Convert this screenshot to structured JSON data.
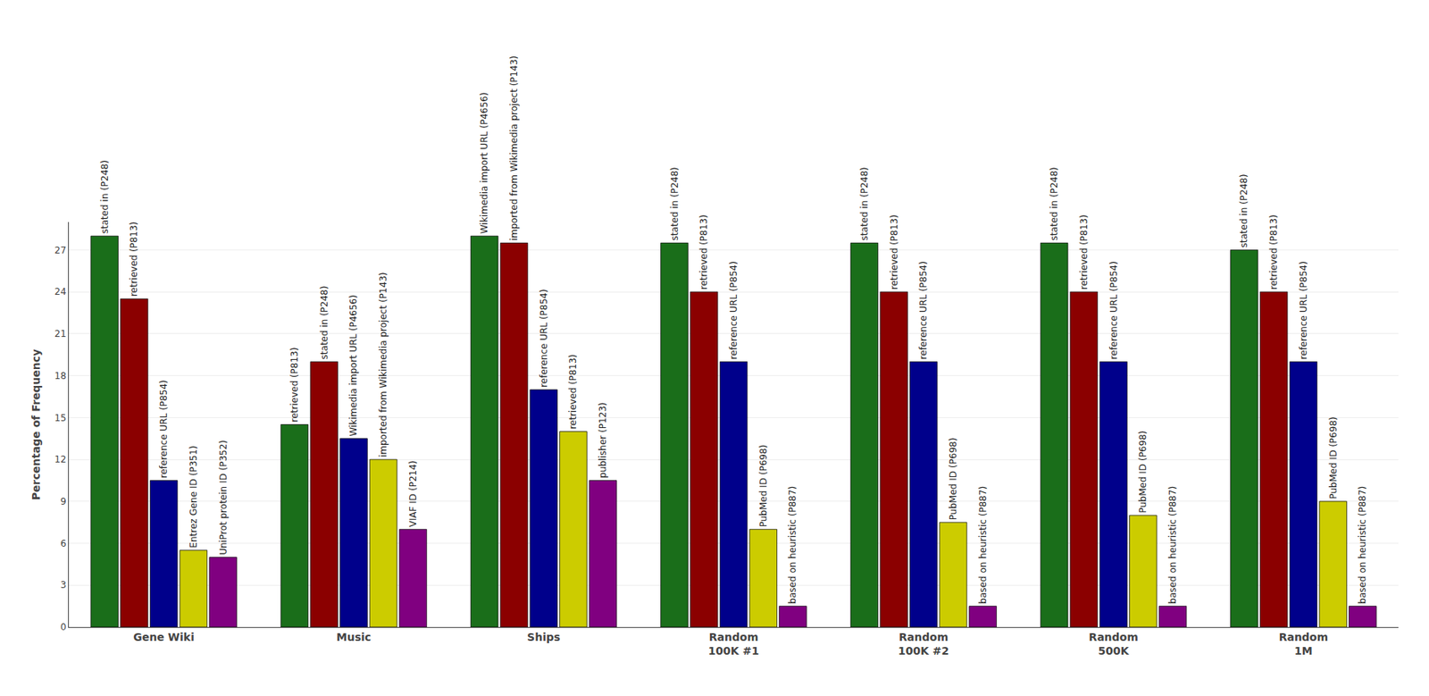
{
  "chart_data": {
    "type": "bar",
    "categories": [
      "Gene Wiki",
      "Music",
      "Ships",
      "Random\n100K #1",
      "Random\n100K #2",
      "Random\n500K",
      "Random\n1M"
    ],
    "series": [
      {
        "color": "#1a6e1a",
        "values": [
          28.0,
          14.5,
          28.0,
          27.5,
          27.5,
          27.5,
          27.0
        ],
        "labels": [
          "stated in (P248)",
          "retrieved (P813)",
          "Wikimedia import URL (P4656)",
          "stated in (P248)",
          "stated in (P248)",
          "stated in (P248)",
          "stated in (P248)"
        ]
      },
      {
        "color": "#8b0000",
        "values": [
          23.5,
          19.0,
          27.5,
          24.0,
          24.0,
          24.0,
          24.0
        ],
        "labels": [
          "retrieved (P813)",
          "stated in (P248)",
          "imported from Wikimedia project (P143)",
          "retrieved (P813)",
          "retrieved (P813)",
          "retrieved (P813)",
          "retrieved (P813)"
        ]
      },
      {
        "color": "#00008b",
        "values": [
          10.5,
          13.5,
          17.0,
          19.0,
          19.0,
          19.0,
          19.0
        ],
        "labels": [
          "reference URL (P854)",
          "Wikimedia import URL (P4656)",
          "reference URL (P854)",
          "reference URL (P854)",
          "reference URL (P854)",
          "reference URL (P854)",
          "reference URL (P854)"
        ]
      },
      {
        "color": "#cccc00",
        "values": [
          5.5,
          12.0,
          14.0,
          7.0,
          7.5,
          8.0,
          9.0
        ],
        "labels": [
          "Entrez Gene ID (P351)",
          "imported from Wikimedia project (P143)",
          "retrieved (P813)",
          "PubMed ID (P698)",
          "PubMed ID (P698)",
          "PubMed ID (P698)",
          "PubMed ID (P698)"
        ]
      },
      {
        "color": "#800080",
        "values": [
          5.0,
          7.0,
          10.5,
          1.5,
          1.5,
          1.5,
          1.5
        ],
        "labels": [
          "UniProt protein ID (P352)",
          "VIAF ID (P214)",
          "publisher (P123)",
          "based on heuristic (P887)",
          "based on heuristic (P887)",
          "based on heuristic (P887)",
          "based on heuristic (P887)"
        ]
      }
    ],
    "ylabel": "Percentage of Frequency",
    "ylim": [
      0,
      29
    ],
    "yticks": [
      0,
      3,
      6,
      9,
      12,
      15,
      18,
      21,
      24,
      27
    ],
    "grid": true
  }
}
